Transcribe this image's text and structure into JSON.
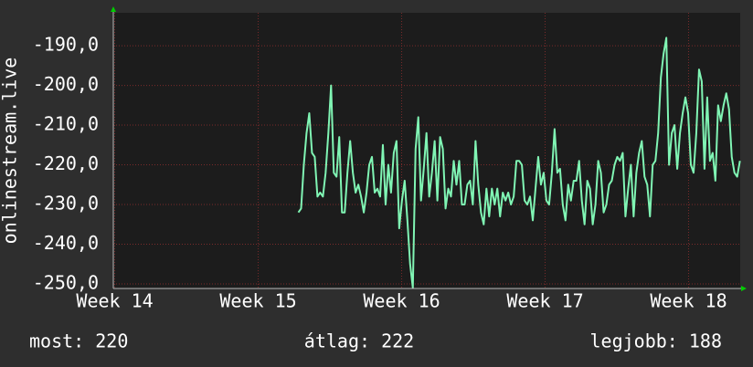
{
  "chart_data": {
    "type": "line",
    "y_label": "onlinestream.live",
    "x": [
      15.28,
      15.299,
      15.318,
      15.337,
      15.356,
      15.375,
      15.394,
      15.413,
      15.432,
      15.451,
      15.47,
      15.489,
      15.508,
      15.527,
      15.546,
      15.565,
      15.584,
      15.603,
      15.622,
      15.641,
      15.66,
      15.679,
      15.698,
      15.717,
      15.736,
      15.755,
      15.774,
      15.793,
      15.812,
      15.831,
      15.85,
      15.869,
      15.888,
      15.907,
      15.926,
      15.945,
      15.964,
      15.983,
      16.002,
      16.021,
      16.04,
      16.059,
      16.078,
      16.097,
      16.116,
      16.135,
      16.154,
      16.173,
      16.192,
      16.211,
      16.23,
      16.249,
      16.268,
      16.287,
      16.306,
      16.325,
      16.344,
      16.363,
      16.382,
      16.401,
      16.42,
      16.439,
      16.458,
      16.477,
      16.496,
      16.515,
      16.534,
      16.553,
      16.572,
      16.591,
      16.61,
      16.629,
      16.648,
      16.667,
      16.686,
      16.705,
      16.724,
      16.743,
      16.762,
      16.781,
      16.8,
      16.819,
      16.838,
      16.857,
      16.876,
      16.895,
      16.914,
      16.933,
      16.952,
      16.971,
      16.99,
      17.009,
      17.028,
      17.047,
      17.066,
      17.085,
      17.104,
      17.123,
      17.142,
      17.161,
      17.18,
      17.199,
      17.218,
      17.237,
      17.256,
      17.275,
      17.294,
      17.313,
      17.332,
      17.351,
      17.37,
      17.389,
      17.408,
      17.427,
      17.446,
      17.465,
      17.484,
      17.503,
      17.522,
      17.541,
      17.56,
      17.579,
      17.598,
      17.617,
      17.636,
      17.655,
      17.674,
      17.693,
      17.712,
      17.731,
      17.75,
      17.769,
      17.788,
      17.807,
      17.826,
      17.845,
      17.864,
      17.883,
      17.902,
      17.921,
      17.94,
      17.959,
      17.978,
      17.997,
      18.016,
      18.035,
      18.054,
      18.073,
      18.092,
      18.111,
      18.13,
      18.149,
      18.168,
      18.187,
      18.206,
      18.225,
      18.244,
      18.263,
      18.282,
      18.301,
      18.32,
      18.339,
      18.358
    ],
    "series": [
      {
        "color": "#80f5b4",
        "values": [
          -232,
          -231,
          -220,
          -212,
          -207,
          -217,
          -218,
          -228,
          -227,
          -228,
          -222,
          -212,
          -200,
          -222,
          -223,
          -213,
          -232,
          -232,
          -222,
          -214,
          -222,
          -227,
          -225,
          -228,
          -232,
          -227,
          -220,
          -218,
          -227,
          -226,
          -228,
          -215,
          -230,
          -220,
          -227,
          -217,
          -214,
          -236,
          -229,
          -224,
          -234,
          -245,
          -251,
          -216,
          -208,
          -229,
          -221,
          -212,
          -228,
          -222,
          -214,
          -229,
          -213,
          -216,
          -231,
          -226,
          -228,
          -219,
          -225,
          -219,
          -230,
          -230,
          -225,
          -224,
          -230,
          -214,
          -225,
          -232,
          -235,
          -226,
          -233,
          -226,
          -230,
          -226,
          -233,
          -227,
          -229,
          -227,
          -230,
          -228,
          -219,
          -219,
          -220,
          -229,
          -230,
          -228,
          -234,
          -226,
          -218,
          -225,
          -222,
          -229,
          -230,
          -222,
          -211,
          -222,
          -221,
          -230,
          -234,
          -225,
          -229,
          -224,
          -224,
          -219,
          -229,
          -235,
          -224,
          -226,
          -235,
          -230,
          -219,
          -222,
          -232,
          -230,
          -225,
          -224,
          -220,
          -218,
          -219,
          -217,
          -233,
          -226,
          -220,
          -233,
          -222,
          -217,
          -214,
          -223,
          -225,
          -233,
          -220,
          -219,
          -212,
          -198,
          -192,
          -188,
          -220,
          -212,
          -210,
          -221,
          -212,
          -207,
          -203,
          -207,
          -220,
          -222,
          -212,
          -196,
          -199,
          -221,
          -203,
          -219,
          -217,
          -224,
          -205,
          -209,
          -205,
          -202,
          -206,
          -218,
          -222,
          -223,
          -219
        ]
      }
    ],
    "xlim": [
      13.99,
      18.36
    ],
    "ylim": [
      -251.15,
      -181.7
    ],
    "xticks": [
      {
        "value": 14,
        "label": "Week 14"
      },
      {
        "value": 15,
        "label": "Week 15"
      },
      {
        "value": 16,
        "label": "Week 16"
      },
      {
        "value": 17,
        "label": "Week 17"
      },
      {
        "value": 18,
        "label": "Week 18"
      }
    ],
    "yticks": [
      {
        "value": -250,
        "label": "-250,0"
      },
      {
        "value": -240,
        "label": "-240,0"
      },
      {
        "value": -230,
        "label": "-230,0"
      },
      {
        "value": -220,
        "label": "-220,0"
      },
      {
        "value": -210,
        "label": "-210,0"
      },
      {
        "value": -200,
        "label": "-200,0"
      },
      {
        "value": -190,
        "label": "-190,0"
      }
    ],
    "grid": true,
    "footer": [
      "most: 220",
      "átlag: 222",
      "legjobb: 188"
    ]
  }
}
